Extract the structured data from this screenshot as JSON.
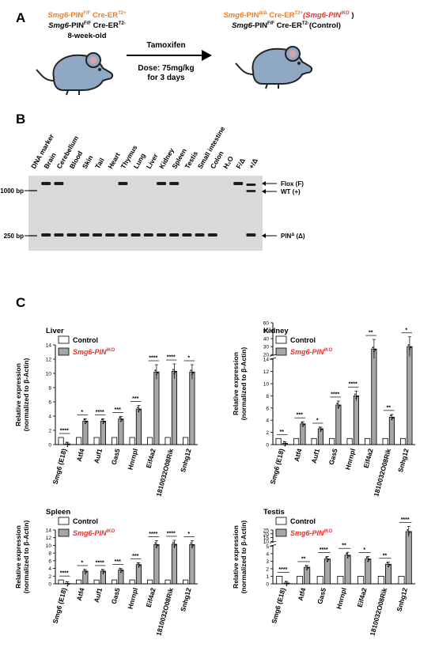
{
  "panels": {
    "a": "A",
    "b": "B",
    "c": "C"
  },
  "panel_a": {
    "left_line1_pre": "Smg6-",
    "left_line1_mid": "PIN",
    "left_line1_sup": "F/F",
    "left_line1_post": " Cre-ER",
    "left_line1_sup2": "T2+",
    "left_line2_pre": "Smg6-",
    "left_line2_mid": "PIN",
    "left_line2_sup": "F/F",
    "left_line2_post": " Cre-ER",
    "left_line2_sup2": "T2-",
    "left_line3": "8-week-old",
    "arrow_label": "Tamoxifen",
    "dose_line1": "Dose: 75mg/kg",
    "dose_line2": "for 3 days",
    "right_line1_pre": "Smg6-",
    "right_line1_mid": "PIN",
    "right_line1_sup": "Δ/Δ",
    "right_line1_post": " Cre-ER",
    "right_line1_sup2": "T2+",
    "right_line1_red": "(Smg6-PIN",
    "right_line1_red_sup": "iKO",
    "right_line1_red_end": " )",
    "right_line2_pre": "Smg6-",
    "right_line2_mid": "PIN",
    "right_line2_sup": "F/F",
    "right_line2_post": " Cre-ER",
    "right_line2_sup2": "T2-",
    "right_line2_end": "(Control)"
  },
  "panel_b": {
    "lanes": [
      "DNA marker",
      "Brain",
      "Cerebellum",
      "Blood",
      "Skin",
      "Tail",
      "Heart",
      "Thymus",
      "Lung",
      "Liver",
      "Kidney",
      "Spleen",
      "Testis",
      "Small intestine",
      "Colon",
      "H₂O",
      "F/Δ",
      "+/Δ"
    ],
    "left_labels": [
      "1000 bp",
      "250 bp"
    ],
    "right_labels": [
      "Flox (F)",
      "WT (+)",
      "PIN"
    ],
    "right_label_sup": "Δ",
    "right_label_suffix": " (Δ)"
  },
  "legend": {
    "control": "Control",
    "ko_prefix": "Smg6-PIN",
    "ko_sup": "iKO"
  },
  "colors": {
    "control": "#ffffff",
    "ko": "#a6a6a6",
    "ko_text": "#e8302a",
    "orange": "#f07b22",
    "gel_bg": "#d9d9d9"
  },
  "chart_data": [
    {
      "type": "bar",
      "title": "Liver",
      "ylabel": "Relative expression (normalized to β-Actin)",
      "ylim": [
        0,
        14
      ],
      "yticks": [
        0,
        2,
        4,
        6,
        8,
        10,
        12,
        14
      ],
      "categories": [
        "Smg6 (E18)",
        "Atf4",
        "Auf1",
        "Gas5",
        "Hnrnpl",
        "Eif4a2",
        "1810032O08Rik",
        "Snhg12"
      ],
      "series": [
        {
          "name": "Control",
          "values": [
            1.0,
            1.0,
            1.0,
            1.0,
            1.0,
            1.0,
            1.0,
            1.0
          ]
        },
        {
          "name": "Smg6-PINiKO",
          "values": [
            0.1,
            3.3,
            3.3,
            3.6,
            5.0,
            10.2,
            10.3,
            10.2
          ]
        }
      ],
      "significance": [
        "****",
        "*",
        "****",
        "***",
        "***",
        "****",
        "****",
        "*"
      ]
    },
    {
      "type": "bar",
      "title": "Kidney",
      "ylabel": "Relative expression (normalized to β-Actin)",
      "ylim": [
        0,
        60
      ],
      "yticks": [
        0,
        2,
        4,
        6,
        8,
        10,
        12,
        14,
        20,
        30,
        40,
        50,
        60
      ],
      "axis_break": [
        14,
        20
      ],
      "categories": [
        "Smg6 (E18)",
        "Atf4",
        "Auf1",
        "Gas5",
        "Hnrnpl",
        "Eif4a2",
        "1810032O08Rik",
        "Snhg12"
      ],
      "series": [
        {
          "name": "Control",
          "values": [
            1.0,
            1.0,
            1.0,
            1.0,
            1.0,
            1.0,
            1.0,
            1.0
          ]
        },
        {
          "name": "Smg6-PINiKO",
          "values": [
            0.2,
            3.4,
            2.6,
            6.5,
            8.0,
            27,
            4.5,
            30
          ]
        }
      ],
      "significance": [
        "**",
        "***",
        "*",
        "****",
        "****",
        "**",
        "**",
        "*"
      ]
    },
    {
      "type": "bar",
      "title": "Spleen",
      "ylabel": "Relative expression (normalized to β-Actin)",
      "ylim": [
        0,
        14
      ],
      "yticks": [
        0,
        2,
        4,
        6,
        8,
        10,
        12,
        14
      ],
      "categories": [
        "Smg6 (E18)",
        "Atf4",
        "Auf1",
        "Gas5",
        "Hnrnpl",
        "Eif4a2",
        "1810032O08Rik",
        "Snhg12"
      ],
      "series": [
        {
          "name": "Control",
          "values": [
            1.0,
            1.0,
            1.0,
            1.0,
            1.0,
            1.0,
            1.0,
            1.0
          ]
        },
        {
          "name": "Smg6-PINiKO",
          "values": [
            0.1,
            3.3,
            3.3,
            3.6,
            5.0,
            10.2,
            10.3,
            10.2
          ]
        }
      ],
      "significance": [
        "****",
        "*",
        "****",
        "***",
        "***",
        "****",
        "****",
        "*"
      ]
    },
    {
      "type": "bar",
      "title": "Testis",
      "ylabel": "Relative expression (normalized to β-Actin)",
      "ylim": [
        0,
        25
      ],
      "yticks": [
        0,
        1,
        2,
        3,
        4,
        5,
        10,
        15,
        20,
        25
      ],
      "axis_break": [
        5,
        10
      ],
      "categories": [
        "Smg6 (E18)",
        "Atf4",
        "Gas5",
        "Hnrnpl",
        "Eif4a2",
        "1810032O08Rik",
        "Snhg12"
      ],
      "series": [
        {
          "name": "Control",
          "values": [
            1.0,
            1.0,
            1.0,
            1.0,
            1.0,
            1.0,
            1.0
          ]
        },
        {
          "name": "Smg6-PINiKO",
          "values": [
            0.1,
            2.2,
            3.3,
            3.8,
            3.3,
            2.6,
            23
          ]
        }
      ],
      "significance": [
        "****",
        "**",
        "****",
        "**",
        "*",
        "**",
        "****"
      ]
    }
  ]
}
